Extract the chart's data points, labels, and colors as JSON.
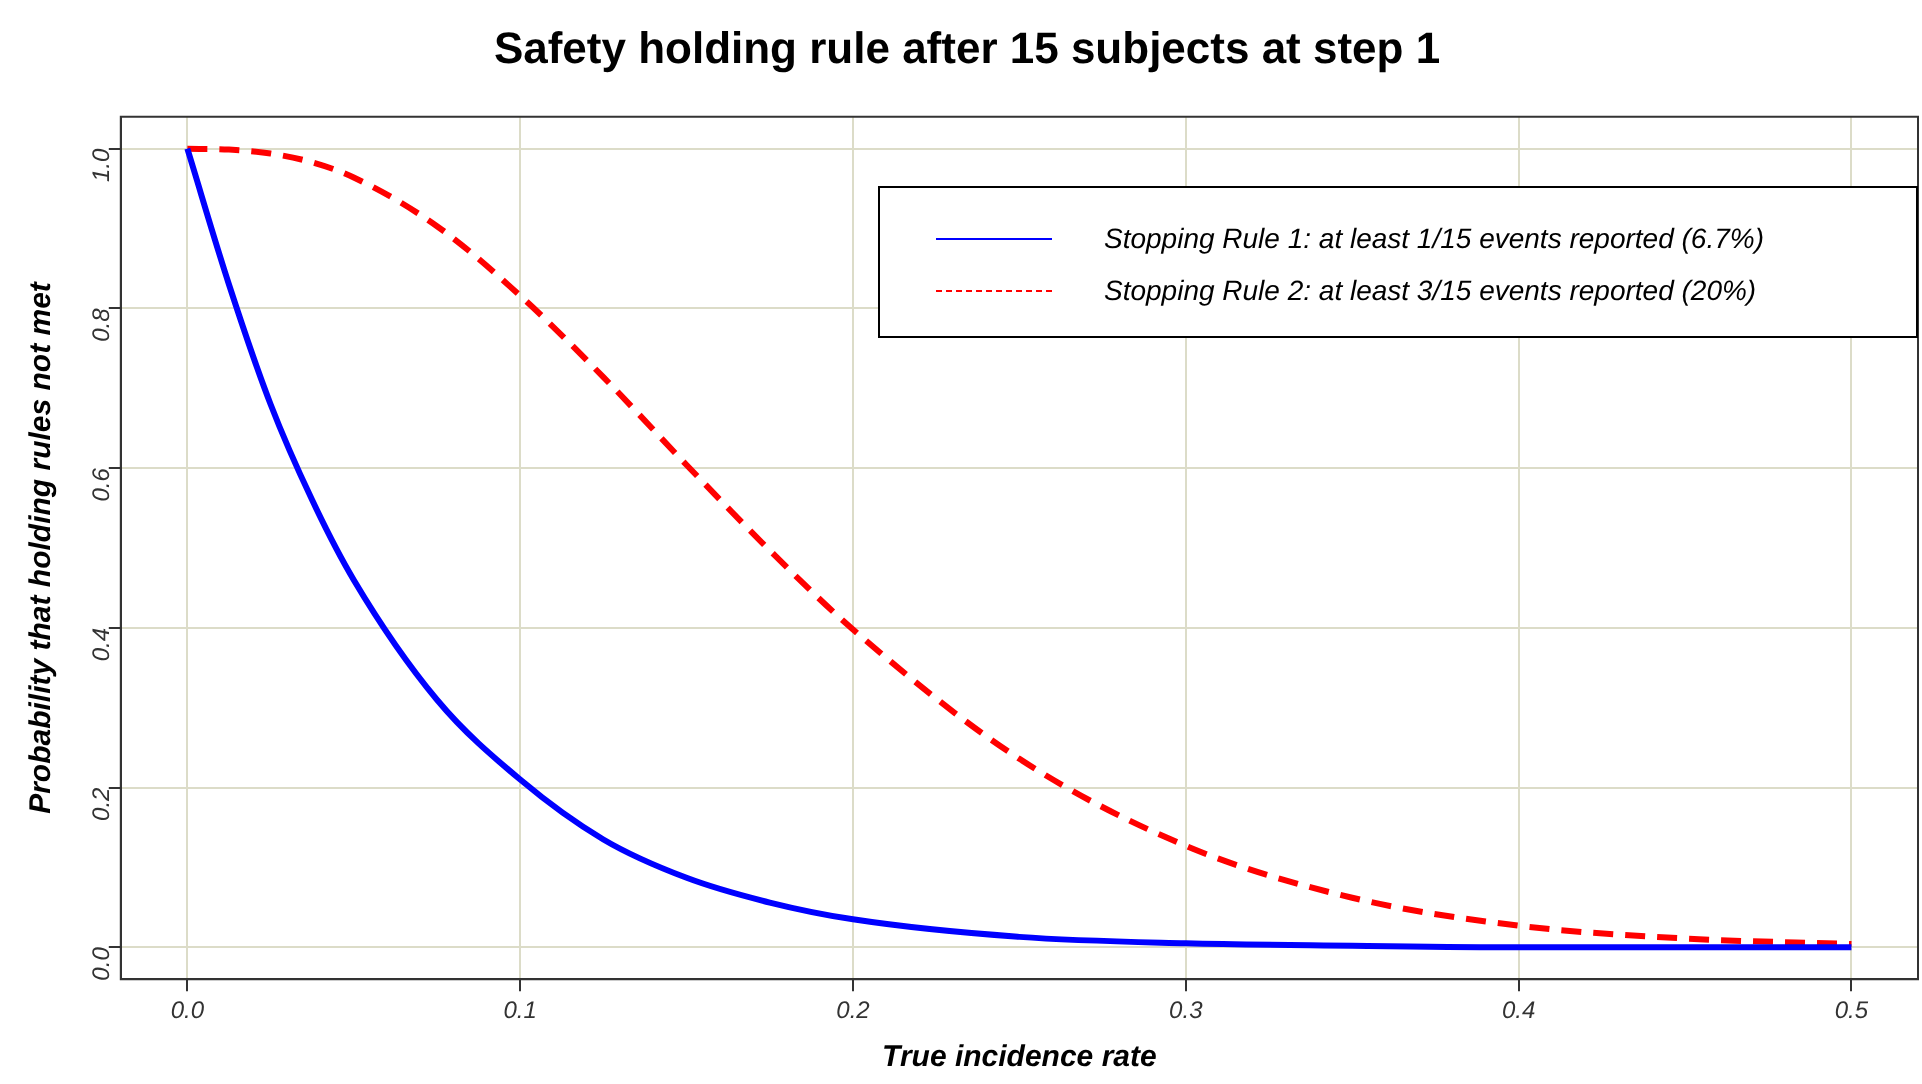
{
  "chart_data": {
    "type": "line",
    "title": "Safety holding rule after 15 subjects at step 1",
    "xlabel": "True incidence rate",
    "ylabel": "Probability that holding rules not met",
    "x": [
      0,
      0.0125,
      0.025,
      0.0375,
      0.05,
      0.075,
      0.1,
      0.125,
      0.15,
      0.175,
      0.2,
      0.25,
      0.3,
      0.35,
      0.4,
      0.45,
      0.5
    ],
    "series": [
      {
        "name": "Stopping Rule 1: at least 1/15 events reported (6.7%)",
        "color": "#0000ff",
        "line_style": "solid",
        "values": [
          1,
          0.83,
          0.68,
          0.56,
          0.46,
          0.31,
          0.21,
          0.135,
          0.087,
          0.056,
          0.035,
          0.013,
          0.005,
          0.002,
          0,
          0,
          0
        ]
      },
      {
        "name": "Stopping Rule 2: at least 3/15 events reported (20%)",
        "color": "#ff0000",
        "line_style": "dashed",
        "values": [
          1,
          0.999,
          0.994,
          0.983,
          0.964,
          0.903,
          0.816,
          0.714,
          0.604,
          0.497,
          0.398,
          0.236,
          0.127,
          0.062,
          0.027,
          0.011,
          0.004
        ]
      }
    ],
    "xlim": [
      -0.02,
      0.52
    ],
    "ylim": [
      -0.04,
      1.04
    ],
    "xticks": [
      {
        "value": 0,
        "label": "0.0"
      },
      0.1,
      0.2,
      0.3,
      0.4,
      0.5
    ],
    "yticks": [
      {
        "value": 0,
        "label": "0.0"
      },
      0.2,
      0.4,
      0.6,
      0.8,
      {
        "value": 1,
        "label": "1.0"
      }
    ],
    "grid": true,
    "legend": "top right",
    "marker": "none"
  }
}
